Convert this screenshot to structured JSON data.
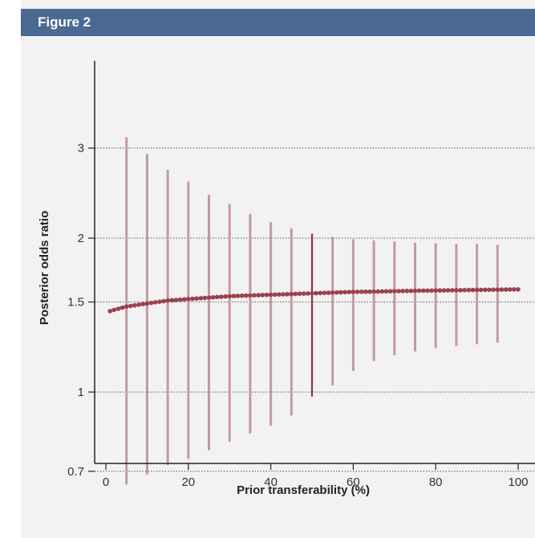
{
  "figure": {
    "title": "Figure 2"
  },
  "colors": {
    "header_bg": "#4a6a94",
    "panel_bg": "#f2f2f3",
    "interval": "#c49a9c",
    "interval_highlight": "#8b3344",
    "curve": "#a8505a",
    "curve_marker": "#9a4250"
  },
  "chart_data": {
    "type": "line",
    "xlabel": "Prior transferability (%)",
    "ylabel": "Posterior odds ratio",
    "xlim": [
      0,
      100
    ],
    "ylim": [
      0.62,
      3.3
    ],
    "y_scale": "log",
    "grid": "horizontal-dotted",
    "x_ticks": [
      0,
      20,
      40,
      60,
      80,
      100
    ],
    "y_ticks": [
      0.7,
      1,
      1.5,
      2,
      3
    ],
    "x_tick_labels": [
      "0",
      "20",
      "40",
      "60",
      "80",
      "100"
    ],
    "y_tick_labels": [
      "0.7",
      "1",
      "1.5",
      "2",
      "3"
    ],
    "series": [
      {
        "type": "line",
        "x": [
          1,
          5,
          10,
          15,
          20,
          25,
          30,
          35,
          40,
          45,
          50,
          55,
          60,
          65,
          70,
          75,
          80,
          85,
          90,
          95,
          100
        ],
        "y": [
          1.44,
          1.47,
          1.49,
          1.51,
          1.52,
          1.53,
          1.54,
          1.545,
          1.55,
          1.555,
          1.56,
          1.565,
          1.57,
          1.572,
          1.575,
          1.578,
          1.58,
          1.582,
          1.584,
          1.586,
          1.588
        ]
      },
      {
        "type": "interval",
        "x": [
          5,
          10,
          15,
          20,
          25,
          30,
          35,
          40,
          45,
          50,
          55,
          60,
          65,
          70,
          75,
          80,
          85,
          90,
          95
        ],
        "low": [
          0.66,
          0.69,
          0.72,
          0.74,
          0.77,
          0.8,
          0.83,
          0.86,
          0.9,
          0.98,
          1.03,
          1.1,
          1.15,
          1.18,
          1.2,
          1.22,
          1.23,
          1.24,
          1.25
        ],
        "high": [
          3.15,
          2.92,
          2.72,
          2.58,
          2.43,
          2.33,
          2.23,
          2.15,
          2.09,
          2.04,
          2.01,
          1.99,
          1.98,
          1.97,
          1.96,
          1.955,
          1.95,
          1.95,
          1.94
        ],
        "highlight_x": 50
      }
    ]
  }
}
